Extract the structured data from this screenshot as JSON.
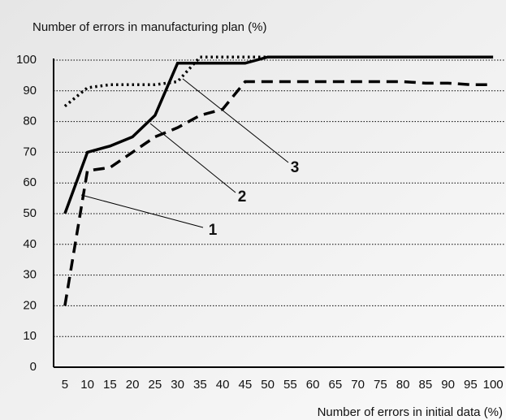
{
  "chart_data": {
    "type": "line",
    "y_label": "Number of errors in manufacturing plan  (%)",
    "x_label": "Number of errors in initial data (%)",
    "categories": [
      "5",
      "10",
      "15",
      "20",
      "25",
      "30",
      "35",
      "40",
      "45",
      "50",
      "55",
      "60",
      "65",
      "70",
      "75",
      "80",
      "85",
      "90",
      "95",
      "100"
    ],
    "series": [
      {
        "name": "1",
        "color": "#000000",
        "dash": "dashed",
        "values": [
          20,
          64,
          65,
          70,
          75,
          78,
          82,
          84,
          93,
          93,
          93,
          93,
          93,
          93,
          93,
          93,
          92.5,
          92.5,
          92,
          92
        ]
      },
      {
        "name": "2",
        "color": "#000000",
        "dash": "solid",
        "values": [
          50,
          70,
          72,
          75,
          82,
          99,
          99,
          99,
          99,
          101,
          101,
          101,
          101,
          101,
          101,
          101,
          101,
          101,
          101,
          101
        ]
      },
      {
        "name": "3",
        "color": "#000000",
        "dash": "dotted",
        "values": [
          85,
          91,
          92,
          92,
          92,
          93,
          101,
          101,
          101,
          101,
          null,
          null,
          null,
          null,
          null,
          null,
          null,
          null,
          null,
          null
        ]
      }
    ],
    "ylim": [
      0,
      100
    ],
    "yticks": [
      0,
      10,
      20,
      30,
      40,
      50,
      60,
      70,
      80,
      90,
      100
    ],
    "grid": true
  }
}
